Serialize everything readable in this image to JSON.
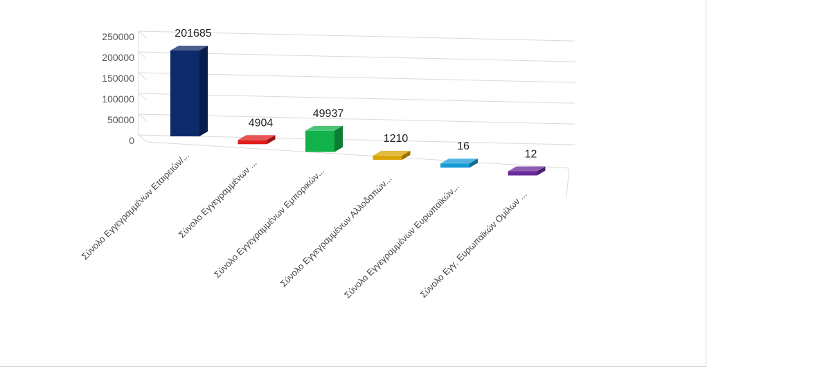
{
  "chart_data": {
    "type": "bar",
    "categories": [
      "Σύνολο Εγγεγραμμένων Εταιρειών/...",
      "Σύνολο Εγγεγραμμένων ...",
      "Σύνολο Εγγεγραμμένων Εμπορικών...",
      "Σύνολο Εγγεγραμμένων Αλλοδαπών...",
      "Σύνολο Εγγεγραμμένων Ευρωπαϊκών...",
      "Σύνολο Εγγ. Ευρωπαϊκών Ομίλων ..."
    ],
    "values": [
      201685,
      4904,
      49937,
      1210,
      16,
      12
    ],
    "data_labels": [
      "201685",
      "4904",
      "49937",
      "1210",
      "16",
      "12"
    ],
    "colors": [
      "#0d2a6b",
      "#e01b1b",
      "#12b24a",
      "#d9a400",
      "#169ad6",
      "#6a2a9b"
    ],
    "y_ticks": [
      "0",
      "50000",
      "100000",
      "150000",
      "200000",
      "250000"
    ],
    "ylim": [
      0,
      250000
    ],
    "grid": true,
    "title": "",
    "xlabel": "",
    "ylabel": ""
  }
}
